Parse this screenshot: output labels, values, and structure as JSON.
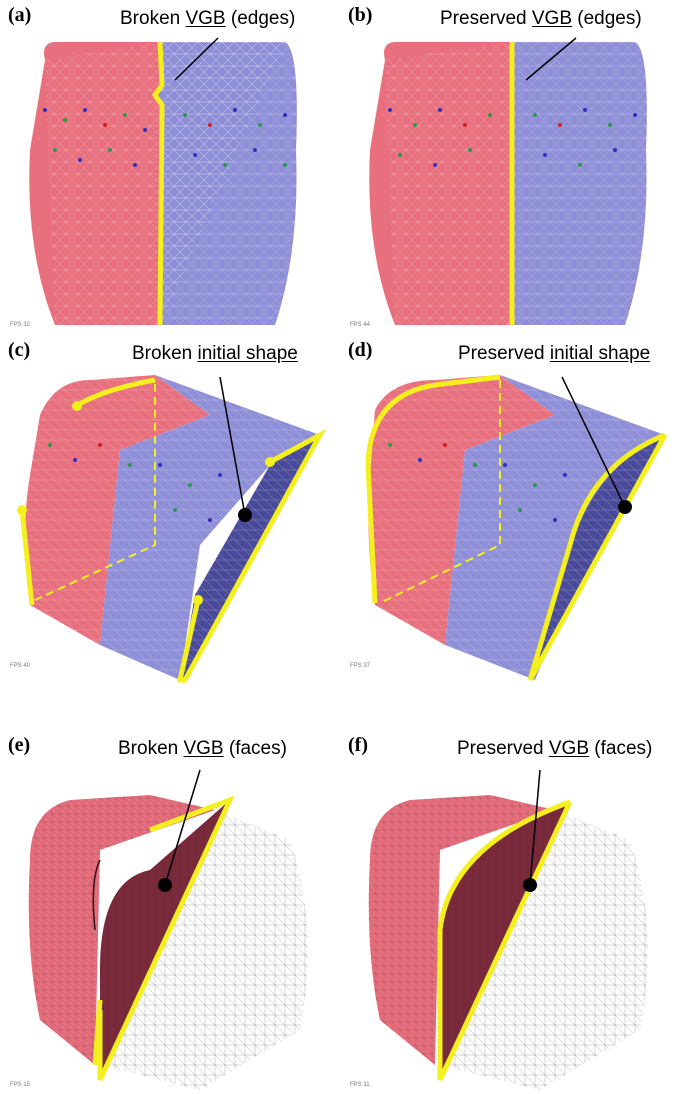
{
  "panels": [
    {
      "id": "a",
      "label": "(a)",
      "cap_pre": "Broken ",
      "cap_u": "VGB",
      "cap_post": " (edges)",
      "fps": "FPS 32"
    },
    {
      "id": "b",
      "label": "(b)",
      "cap_pre": "Preserved ",
      "cap_u": "VGB",
      "cap_post": " (edges)",
      "fps": "FPS 44"
    },
    {
      "id": "c",
      "label": "(c)",
      "cap_pre": "Broken ",
      "cap_u": "initial shape",
      "cap_post": "",
      "fps": "FPS 40"
    },
    {
      "id": "d",
      "label": "(d)",
      "cap_pre": "Preserved ",
      "cap_u": "initial shape",
      "cap_post": "",
      "fps": "FPS 37"
    },
    {
      "id": "e",
      "label": "(e)",
      "cap_pre": "Broken ",
      "cap_u": "VGB",
      "cap_post": " (faces)",
      "fps": "FPS 15"
    },
    {
      "id": "f",
      "label": "(f)",
      "cap_pre": "Preserved ",
      "cap_u": "VGB",
      "cap_post": " (faces)",
      "fps": "FPS 11"
    }
  ],
  "colors": {
    "red_mesh": "#e8707e",
    "blue_mesh": "#8f8fd8",
    "highlight": "#f4ef1e",
    "dark_face": "#4a4a9a",
    "face_cut": "#7a2a3a"
  }
}
